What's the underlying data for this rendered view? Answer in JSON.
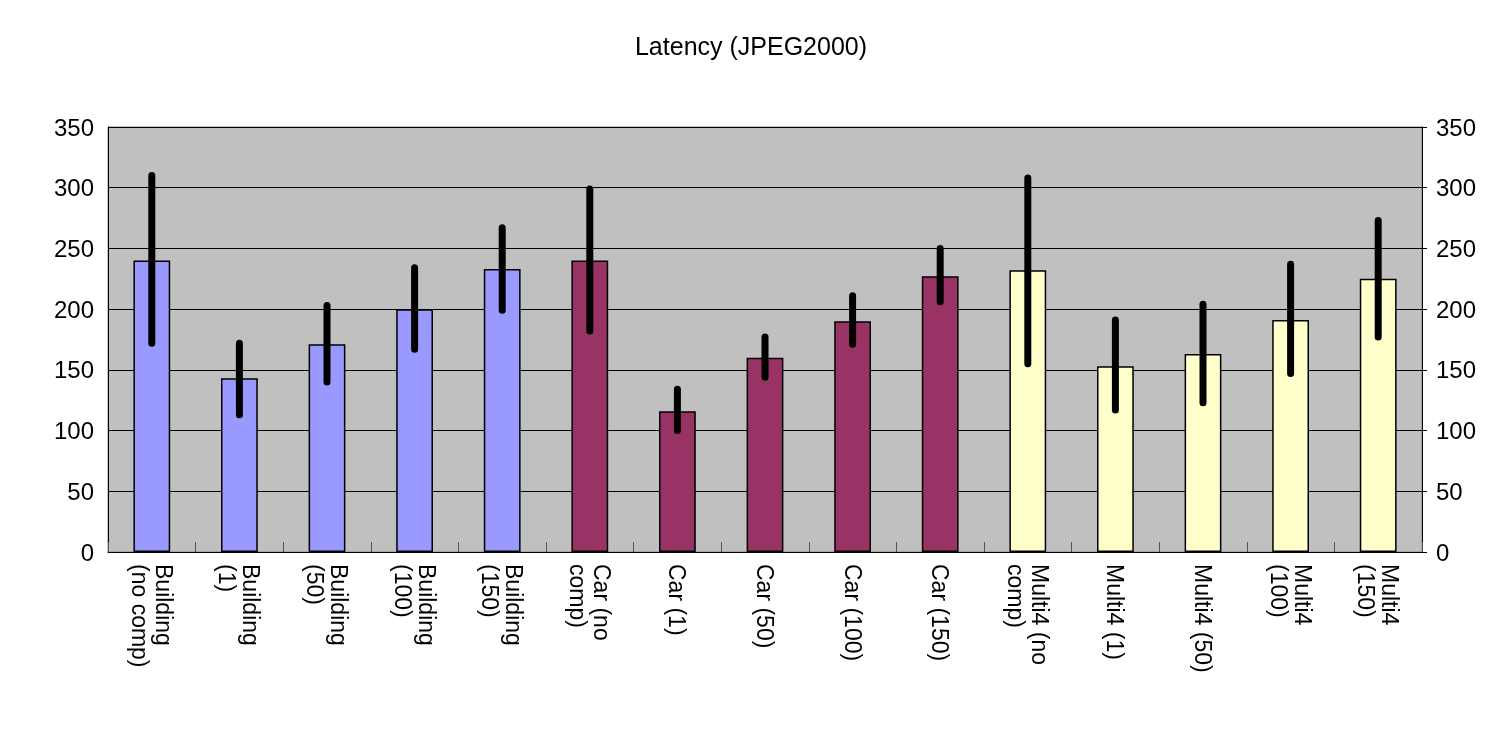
{
  "chart_data": {
    "type": "bar",
    "title": "Latency (JPEG2000)",
    "categories": [
      "Building (no comp)",
      "Building (1)",
      "Building (50)",
      "Building (100)",
      "Building (150)",
      "Car (no comp)",
      "Car (1)",
      "Car (50)",
      "Car (100)",
      "Car (150)",
      "Multi4 (no comp)",
      "Multi4 (1)",
      "Multi4 (50)",
      "Multi4 (100)",
      "Multi4 (150)"
    ],
    "values": [
      240,
      143,
      171,
      200,
      233,
      240,
      116,
      160,
      190,
      227,
      232,
      153,
      163,
      191,
      225
    ],
    "errors": [
      [
        172,
        310
      ],
      [
        113,
        172
      ],
      [
        140,
        203
      ],
      [
        167,
        234
      ],
      [
        199,
        267
      ],
      [
        182,
        299
      ],
      [
        100,
        134
      ],
      [
        144,
        177
      ],
      [
        171,
        211
      ],
      [
        206,
        250
      ],
      [
        155,
        308
      ],
      [
        117,
        191
      ],
      [
        123,
        204
      ],
      [
        147,
        237
      ],
      [
        177,
        273
      ]
    ],
    "colors": [
      "#9999ff",
      "#9999ff",
      "#9999ff",
      "#9999ff",
      "#9999ff",
      "#993366",
      "#993366",
      "#993366",
      "#993366",
      "#993366",
      "#ffffcc",
      "#ffffcc",
      "#ffffcc",
      "#ffffcc",
      "#ffffcc"
    ],
    "ylim": [
      0,
      350
    ],
    "yticks": [
      0,
      50,
      100,
      150,
      200,
      250,
      300,
      350
    ],
    "y2lim": [
      0,
      350
    ],
    "y2ticks": [
      0,
      50,
      100,
      150,
      200,
      250,
      300,
      350
    ],
    "grid": "y"
  }
}
